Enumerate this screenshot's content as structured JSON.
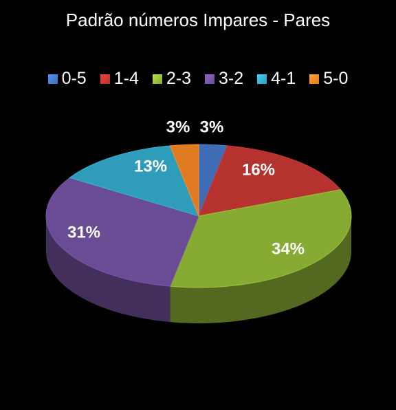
{
  "chart_data": {
    "type": "pie",
    "title": "Padrão números Impares - Pares",
    "legend_position": "top",
    "categories": [
      "0-5",
      "1-4",
      "2-3",
      "3-2",
      "4-1",
      "5-0"
    ],
    "values": [
      3,
      16,
      34,
      31,
      13,
      3
    ],
    "labels": [
      "3%",
      "16%",
      "34%",
      "31%",
      "13%",
      "3%"
    ],
    "colors": [
      "#3E6DB5",
      "#B5322E",
      "#86AA32",
      "#6A4C95",
      "#2F9DB9",
      "#E07B22"
    ]
  }
}
